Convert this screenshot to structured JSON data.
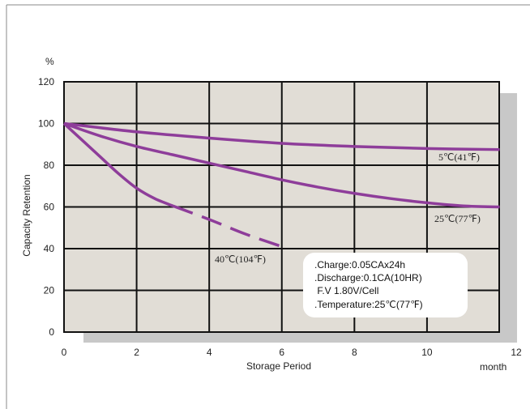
{
  "chart_data": {
    "type": "line",
    "x_unit": "month",
    "y_unit": "%",
    "xlabel": "Storage Period",
    "ylabel": "Capacity Retention",
    "xlim": [
      0,
      12
    ],
    "ylim": [
      0,
      120
    ],
    "x_ticks": [
      0,
      2,
      4,
      6,
      8,
      10,
      12
    ],
    "y_ticks": [
      0,
      20,
      40,
      60,
      80,
      100,
      120
    ],
    "x_grid_lines": [
      0,
      2,
      4,
      6,
      8,
      10,
      12
    ],
    "grid": true,
    "line_color": "#8e3d9a",
    "plot_background": "#e1ddd6",
    "shadow_color": "#c8c8c8",
    "series": [
      {
        "name": "5℃(41℉)",
        "x": [
          0,
          2,
          4,
          6,
          8,
          10,
          12
        ],
        "y": [
          100,
          96,
          93,
          90.5,
          89,
          88,
          87.5
        ],
        "style": "solid"
      },
      {
        "name": "25℃(77℉)",
        "x": [
          0,
          1,
          2,
          3,
          4,
          5,
          6,
          7,
          8,
          9,
          10,
          11,
          12
        ],
        "y": [
          100,
          94,
          89,
          85,
          81,
          77,
          73,
          69.5,
          66.5,
          64,
          62,
          60.5,
          60
        ],
        "style": "solid"
      },
      {
        "name": "40℃(104℉)",
        "x": [
          0,
          0.5,
          1,
          1.5,
          2,
          2.5,
          3
        ],
        "y": [
          100,
          92,
          84,
          76,
          69,
          64,
          60.5
        ],
        "style": "solid"
      },
      {
        "name": "40℃(104℉)",
        "x": [
          3,
          4,
          5,
          6
        ],
        "y": [
          60.5,
          54,
          47,
          41
        ],
        "style": "dashed"
      }
    ],
    "annotations": [
      ".Charge:0.05CAx24h",
      ".Discharge:0.1CA(10HR)",
      " F.V 1.80V/Cell",
      ".Temperature:25℃(77℉)"
    ]
  }
}
